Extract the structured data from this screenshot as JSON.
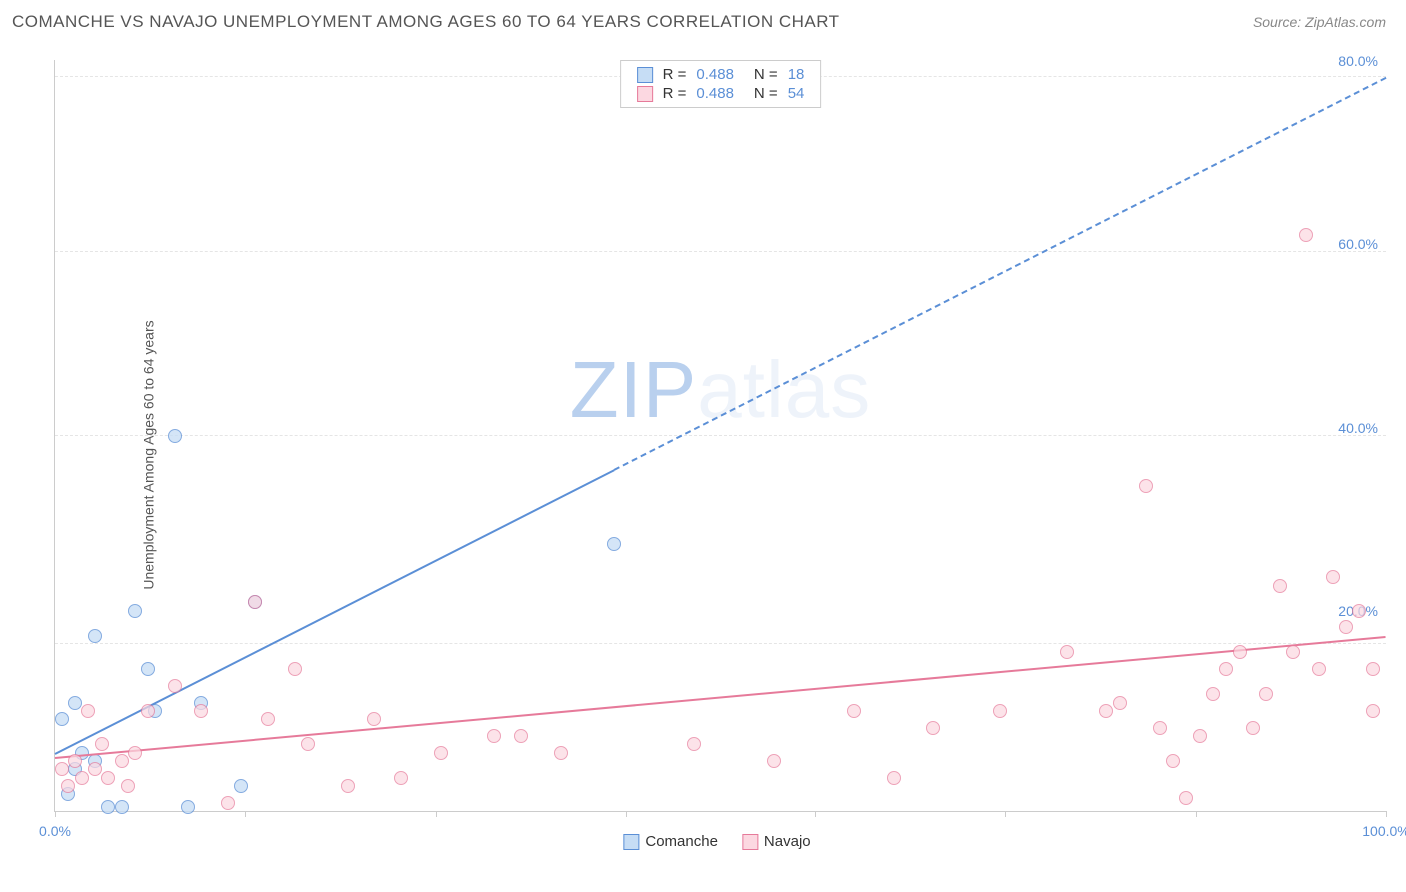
{
  "header": {
    "title": "COMANCHE VS NAVAJO UNEMPLOYMENT AMONG AGES 60 TO 64 YEARS CORRELATION CHART",
    "source_label": "Source: ",
    "source_name": "ZipAtlas.com"
  },
  "yaxis_label": "Unemployment Among Ages 60 to 64 years",
  "watermark": {
    "prefix": "ZIP",
    "suffix": "atlas"
  },
  "chart": {
    "type": "scatter",
    "xlim": [
      0,
      100
    ],
    "ylim": [
      0,
      90
    ],
    "y_gridlines": [
      20,
      45,
      67,
      88
    ],
    "y_tick_labels": [
      {
        "v": 22,
        "label": "20.0%"
      },
      {
        "v": 44,
        "label": "40.0%"
      },
      {
        "v": 66,
        "label": "60.0%"
      },
      {
        "v": 88,
        "label": "80.0%"
      }
    ],
    "x_ticks": [
      0,
      14.3,
      28.6,
      42.9,
      57.1,
      71.4,
      85.7,
      100
    ],
    "x_tick_labels": [
      {
        "v": 0,
        "label": "0.0%"
      },
      {
        "v": 100,
        "label": "100.0%"
      }
    ],
    "series": [
      {
        "name": "Comanche",
        "fill": "#c6ddf5",
        "stroke": "#5b8fd6",
        "marker_radius": 7,
        "marker_opacity": 0.75,
        "trend": {
          "x1": 0,
          "y1": 7,
          "x2_solid": 42,
          "y2_solid": 41,
          "x2": 100,
          "y2": 88,
          "width": 2.5
        },
        "points": [
          {
            "x": 0.5,
            "y": 11
          },
          {
            "x": 1,
            "y": 2
          },
          {
            "x": 1.5,
            "y": 5
          },
          {
            "x": 1.5,
            "y": 13
          },
          {
            "x": 2,
            "y": 7
          },
          {
            "x": 3,
            "y": 6
          },
          {
            "x": 3,
            "y": 21
          },
          {
            "x": 4,
            "y": 0.5
          },
          {
            "x": 5,
            "y": 0.5
          },
          {
            "x": 6,
            "y": 24
          },
          {
            "x": 7,
            "y": 17
          },
          {
            "x": 7.5,
            "y": 12
          },
          {
            "x": 9,
            "y": 45
          },
          {
            "x": 10,
            "y": 0.5
          },
          {
            "x": 11,
            "y": 13
          },
          {
            "x": 14,
            "y": 3
          },
          {
            "x": 15,
            "y": 25
          },
          {
            "x": 42,
            "y": 32
          }
        ]
      },
      {
        "name": "Navajo",
        "fill": "#fcd8e1",
        "stroke": "#e67a9a",
        "marker_radius": 7,
        "marker_opacity": 0.7,
        "trend": {
          "x1": 0,
          "y1": 6.5,
          "x2_solid": 100,
          "y2_solid": 21,
          "x2": 100,
          "y2": 21,
          "width": 2.5
        },
        "points": [
          {
            "x": 0.5,
            "y": 5
          },
          {
            "x": 1,
            "y": 3
          },
          {
            "x": 1.5,
            "y": 6
          },
          {
            "x": 2,
            "y": 4
          },
          {
            "x": 2.5,
            "y": 12
          },
          {
            "x": 3,
            "y": 5
          },
          {
            "x": 3.5,
            "y": 8
          },
          {
            "x": 4,
            "y": 4
          },
          {
            "x": 5,
            "y": 6
          },
          {
            "x": 5.5,
            "y": 3
          },
          {
            "x": 6,
            "y": 7
          },
          {
            "x": 7,
            "y": 12
          },
          {
            "x": 9,
            "y": 15
          },
          {
            "x": 11,
            "y": 12
          },
          {
            "x": 13,
            "y": 1
          },
          {
            "x": 15,
            "y": 25
          },
          {
            "x": 16,
            "y": 11
          },
          {
            "x": 18,
            "y": 17
          },
          {
            "x": 19,
            "y": 8
          },
          {
            "x": 22,
            "y": 3
          },
          {
            "x": 24,
            "y": 11
          },
          {
            "x": 26,
            "y": 4
          },
          {
            "x": 29,
            "y": 7
          },
          {
            "x": 33,
            "y": 9
          },
          {
            "x": 35,
            "y": 9
          },
          {
            "x": 38,
            "y": 7
          },
          {
            "x": 48,
            "y": 8
          },
          {
            "x": 54,
            "y": 6
          },
          {
            "x": 60,
            "y": 12
          },
          {
            "x": 63,
            "y": 4
          },
          {
            "x": 66,
            "y": 10
          },
          {
            "x": 71,
            "y": 12
          },
          {
            "x": 76,
            "y": 19
          },
          {
            "x": 79,
            "y": 12
          },
          {
            "x": 80,
            "y": 13
          },
          {
            "x": 82,
            "y": 39
          },
          {
            "x": 83,
            "y": 10
          },
          {
            "x": 84,
            "y": 6
          },
          {
            "x": 85,
            "y": 1.5
          },
          {
            "x": 86,
            "y": 9
          },
          {
            "x": 87,
            "y": 14
          },
          {
            "x": 88,
            "y": 17
          },
          {
            "x": 89,
            "y": 19
          },
          {
            "x": 90,
            "y": 10
          },
          {
            "x": 91,
            "y": 14
          },
          {
            "x": 92,
            "y": 27
          },
          {
            "x": 93,
            "y": 19
          },
          {
            "x": 94,
            "y": 69
          },
          {
            "x": 95,
            "y": 17
          },
          {
            "x": 96,
            "y": 28
          },
          {
            "x": 97,
            "y": 22
          },
          {
            "x": 98,
            "y": 24
          },
          {
            "x": 99,
            "y": 12
          },
          {
            "x": 99,
            "y": 17
          }
        ]
      }
    ],
    "stats": [
      {
        "series": 0,
        "r_label": "R =",
        "r": "0.488",
        "n_label": "N =",
        "n": "18"
      },
      {
        "series": 1,
        "r_label": "R =",
        "r": "0.488",
        "n_label": "N =",
        "n": "54"
      }
    ],
    "legend": [
      {
        "series": 0,
        "label": "Comanche"
      },
      {
        "series": 1,
        "label": "Navajo"
      }
    ]
  }
}
